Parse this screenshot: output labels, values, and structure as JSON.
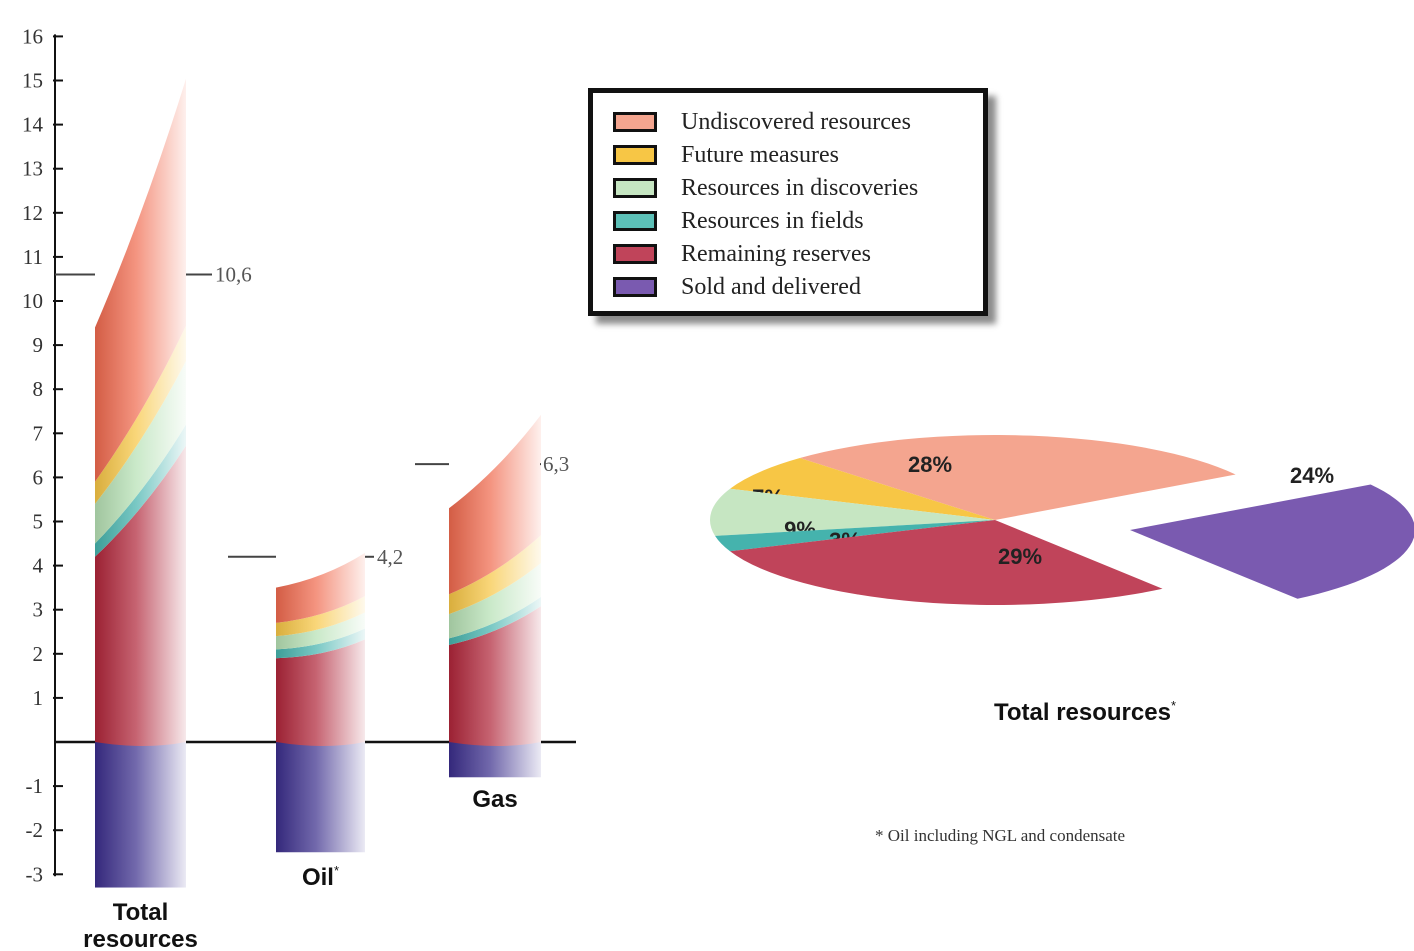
{
  "colors": {
    "undiscovered": "#f06a4e",
    "future": "#f7c645",
    "discoveries": "#b6e0b4",
    "fields": "#45b3ad",
    "reserves": "#b0263a",
    "sold": "#3b2e8c"
  },
  "legend": {
    "items": [
      {
        "label": "Undiscovered resources",
        "color": "#f4a58f"
      },
      {
        "label": "Future measures",
        "color": "#f7c645"
      },
      {
        "label": "Resources in discoveries",
        "color": "#c6e6c2"
      },
      {
        "label": "Resources in fields",
        "color": "#5cc0b7"
      },
      {
        "label": "Remaining reserves",
        "color": "#c0445a"
      },
      {
        "label": "Sold and delivered",
        "color": "#7a5ab0"
      }
    ]
  },
  "footnote": "* Oil including NGL and condensate",
  "chart_data": [
    {
      "type": "bar",
      "ylim": [
        -3,
        16
      ],
      "yticks": [
        "-3",
        "-2",
        "-1",
        "",
        "1",
        "2",
        "3",
        "4",
        "5",
        "6",
        "7",
        "8",
        "9",
        "10",
        "11",
        "12",
        "13",
        "14",
        "15",
        "16"
      ],
      "categories": [
        {
          "label": "Total resources",
          "label_sup": ""
        },
        {
          "label": "Oil",
          "label_sup": "*"
        },
        {
          "label": "Gas",
          "label_sup": ""
        }
      ],
      "series": [
        {
          "name": "Sold and delivered",
          "values": [
            -3.3,
            -2.5,
            -0.8
          ]
        },
        {
          "name": "Remaining reserves",
          "values": [
            4.2,
            1.9,
            2.2
          ]
        },
        {
          "name": "Resources in fields",
          "values": [
            0.3,
            0.2,
            0.15
          ]
        },
        {
          "name": "Resources in discoveries",
          "values": [
            0.9,
            0.3,
            0.55
          ]
        },
        {
          "name": "Future measures",
          "values": [
            0.5,
            0.3,
            0.45
          ]
        },
        {
          "name": "Undiscovered resources",
          "values": [
            3.5,
            0.8,
            1.95
          ]
        }
      ],
      "markers": [
        {
          "category": "Total resources",
          "value": 10.6,
          "label": "10,6"
        },
        {
          "category": "Oil",
          "value": 4.2,
          "label": "4,2"
        },
        {
          "category": "Gas",
          "value": 6.3,
          "label": "6,3"
        }
      ]
    },
    {
      "type": "pie",
      "title": "Total resources",
      "title_sup": "*",
      "slices": [
        {
          "name": "Undiscovered resources",
          "value": 28,
          "label": "28%"
        },
        {
          "name": "Future measures",
          "value": 7,
          "label": "7%"
        },
        {
          "name": "Resources in discoveries",
          "value": 9,
          "label": "9%"
        },
        {
          "name": "Resources in fields",
          "value": 3,
          "label": "3%"
        },
        {
          "name": "Remaining reserves",
          "value": 29,
          "label": "29%"
        },
        {
          "name": "Sold and delivered",
          "value": 24,
          "label": "24%"
        }
      ]
    }
  ]
}
